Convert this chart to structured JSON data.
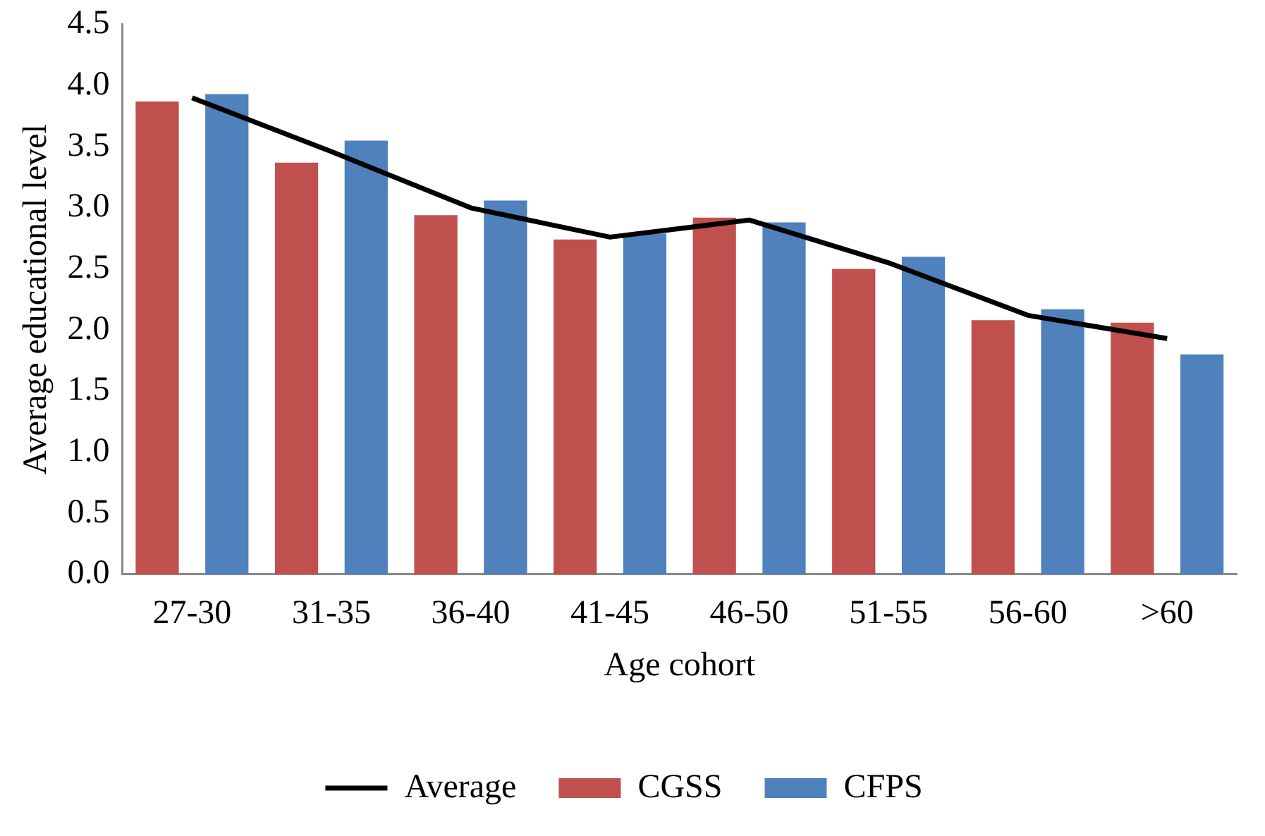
{
  "chart_data": {
    "type": "bar",
    "xlabel": "Age cohort",
    "ylabel": "Average educational level",
    "categories": [
      "27-30",
      "31-35",
      "36-40",
      "41-45",
      "46-50",
      "51-55",
      "56-60",
      ">60"
    ],
    "series": [
      {
        "name": "CGSS",
        "color": "#c0504d",
        "values": [
          3.87,
          3.37,
          2.94,
          2.74,
          2.92,
          2.5,
          2.08,
          2.06
        ]
      },
      {
        "name": "CFPS",
        "color": "#4f81bd",
        "values": [
          3.93,
          3.55,
          3.06,
          2.79,
          2.88,
          2.6,
          2.17,
          1.8
        ]
      },
      {
        "name": "Average",
        "type": "line",
        "color": "#000000",
        "values": [
          3.9,
          3.46,
          3.0,
          2.76,
          2.9,
          2.55,
          2.12,
          1.93
        ]
      }
    ],
    "ylim": [
      0,
      4.5
    ],
    "yticks": [
      {
        "value": 0,
        "label": "0.0"
      },
      {
        "value": 0.5,
        "label": "0.5"
      },
      {
        "value": 1,
        "label": "1.0"
      },
      {
        "value": 1.5,
        "label": "1.5"
      },
      {
        "value": 2,
        "label": "2.0"
      },
      {
        "value": 2.5,
        "label": "2.5"
      },
      {
        "value": 3,
        "label": "3.0"
      },
      {
        "value": 3.5,
        "label": "3.5"
      },
      {
        "value": 4,
        "label": "4.0"
      },
      {
        "value": 4.5,
        "label": "4.5"
      }
    ],
    "grid": false,
    "legend": "bottom",
    "marker": "none"
  }
}
